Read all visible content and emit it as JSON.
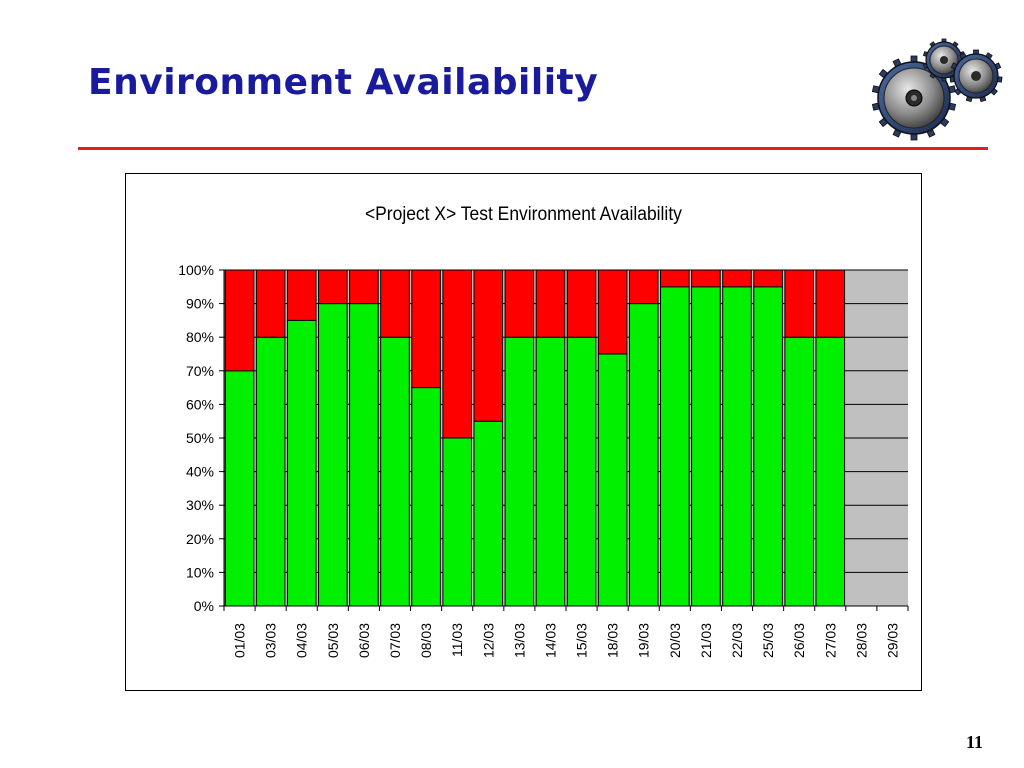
{
  "slide": {
    "title": "Environment Availability",
    "page_number": "11",
    "logo_icon": "gears-icon"
  },
  "colors": {
    "title": "#1a1a9c",
    "rule": "#e0201e",
    "available": "#00f000",
    "unavailable": "#ff0000",
    "plot_background": "#c0c0c0"
  },
  "chart_data": {
    "type": "bar",
    "stacked": true,
    "title": "<Project X> Test Environment Availability",
    "xlabel": "",
    "ylabel": "",
    "ylim": [
      0,
      100
    ],
    "y_tick_format": "percent",
    "y_ticks": [
      "0%",
      "10%",
      "20%",
      "30%",
      "40%",
      "50%",
      "60%",
      "70%",
      "80%",
      "90%",
      "100%"
    ],
    "grid": true,
    "legend": "none",
    "x_label_rotation": "vertical",
    "categories": [
      "01/03",
      "03/03",
      "04/03",
      "05/03",
      "06/03",
      "07/03",
      "08/03",
      "11/03",
      "12/03",
      "13/03",
      "14/03",
      "15/03",
      "18/03",
      "19/03",
      "20/03",
      "21/03",
      "22/03",
      "25/03",
      "26/03",
      "27/03",
      "28/03",
      "29/03"
    ],
    "series": [
      {
        "color": "#00f000",
        "values": [
          70,
          80,
          85,
          90,
          90,
          80,
          65,
          50,
          55,
          80,
          80,
          80,
          75,
          90,
          95,
          95,
          95,
          95,
          80,
          80,
          null,
          null
        ]
      },
      {
        "color": "#ff0000",
        "values": [
          30,
          20,
          15,
          10,
          10,
          20,
          35,
          50,
          45,
          20,
          20,
          20,
          25,
          10,
          5,
          5,
          5,
          5,
          20,
          20,
          null,
          null
        ]
      }
    ]
  }
}
